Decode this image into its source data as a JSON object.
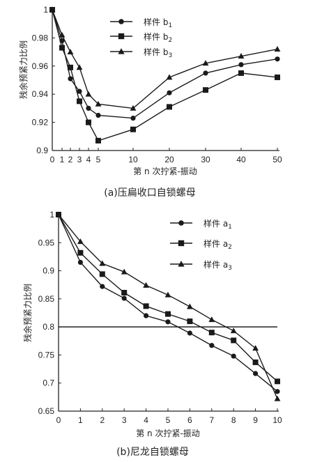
{
  "chart_data": [
    {
      "type": "line",
      "caption": "(a)压扁收口自锁螺母",
      "xlabel": "第 n 次拧紧-振动",
      "ylabel": "残余预紧力比例",
      "x_ticks": [
        0,
        1,
        2,
        3,
        4,
        5,
        10,
        20,
        30,
        40,
        50
      ],
      "x_positions": [
        0,
        1,
        2,
        3,
        4,
        5,
        10,
        20,
        30,
        40,
        50
      ],
      "y_ticks": [
        "0.9",
        "0.92",
        "0.94",
        "0.96",
        "0.98",
        "1"
      ],
      "y_tick_values": [
        0.9,
        0.92,
        0.94,
        0.96,
        0.98,
        1.0
      ],
      "ylim": [
        0.9,
        1.0
      ],
      "grid": false,
      "legend_position": "top-center",
      "series": [
        {
          "name": "样件 b",
          "sub": "1",
          "marker": "circle",
          "x": [
            0,
            1,
            2,
            3,
            4,
            5,
            10,
            20,
            30,
            40,
            50
          ],
          "y": [
            1.0,
            0.978,
            0.951,
            0.942,
            0.93,
            0.925,
            0.923,
            0.941,
            0.955,
            0.961,
            0.965
          ]
        },
        {
          "name": "样件 b",
          "sub": "2",
          "marker": "square",
          "x": [
            0,
            1,
            2,
            3,
            4,
            5,
            10,
            20,
            30,
            40,
            50
          ],
          "y": [
            1.0,
            0.973,
            0.959,
            0.935,
            0.92,
            0.907,
            0.915,
            0.931,
            0.943,
            0.955,
            0.952
          ]
        },
        {
          "name": "样件 b",
          "sub": "3",
          "marker": "triangle",
          "x": [
            0,
            1,
            2,
            3,
            4,
            5,
            10,
            20,
            30,
            40,
            50
          ],
          "y": [
            1.0,
            0.982,
            0.97,
            0.959,
            0.94,
            0.933,
            0.93,
            0.952,
            0.962,
            0.967,
            0.972
          ]
        }
      ]
    },
    {
      "type": "line",
      "caption": "(b)尼龙自锁螺母",
      "xlabel": "第 n 次拧紧-振动",
      "ylabel": "残余预紧力比例",
      "x_ticks": [
        0,
        1,
        2,
        3,
        4,
        5,
        6,
        7,
        8,
        9,
        10
      ],
      "y_ticks": [
        "0.65",
        "0.7",
        "0.75",
        "0.8",
        "0.85",
        "0.9",
        "0.95",
        "1"
      ],
      "y_tick_values": [
        0.65,
        0.7,
        0.75,
        0.8,
        0.85,
        0.9,
        0.95,
        1.0
      ],
      "xlim": [
        0,
        10
      ],
      "ylim": [
        0.65,
        1.0
      ],
      "grid": false,
      "legend_position": "top-right",
      "reference_line_y": 0.8,
      "series": [
        {
          "name": "样件 a",
          "sub": "1",
          "marker": "circle",
          "x": [
            0,
            1,
            2,
            3,
            4,
            5,
            6,
            7,
            8,
            9,
            10
          ],
          "y": [
            1.0,
            0.915,
            0.872,
            0.851,
            0.82,
            0.809,
            0.789,
            0.767,
            0.748,
            0.717,
            0.685
          ]
        },
        {
          "name": "样件 a",
          "sub": "2",
          "marker": "square",
          "x": [
            0,
            1,
            2,
            3,
            4,
            5,
            6,
            7,
            8,
            9,
            10
          ],
          "y": [
            1.0,
            0.932,
            0.894,
            0.861,
            0.837,
            0.823,
            0.81,
            0.79,
            0.776,
            0.737,
            0.703
          ]
        },
        {
          "name": "样件 a",
          "sub": "3",
          "marker": "triangle",
          "x": [
            0,
            1,
            2,
            3,
            4,
            5,
            6,
            7,
            8,
            9,
            10
          ],
          "y": [
            1.0,
            0.952,
            0.913,
            0.898,
            0.874,
            0.857,
            0.836,
            0.813,
            0.793,
            0.762,
            0.672
          ]
        }
      ]
    }
  ]
}
